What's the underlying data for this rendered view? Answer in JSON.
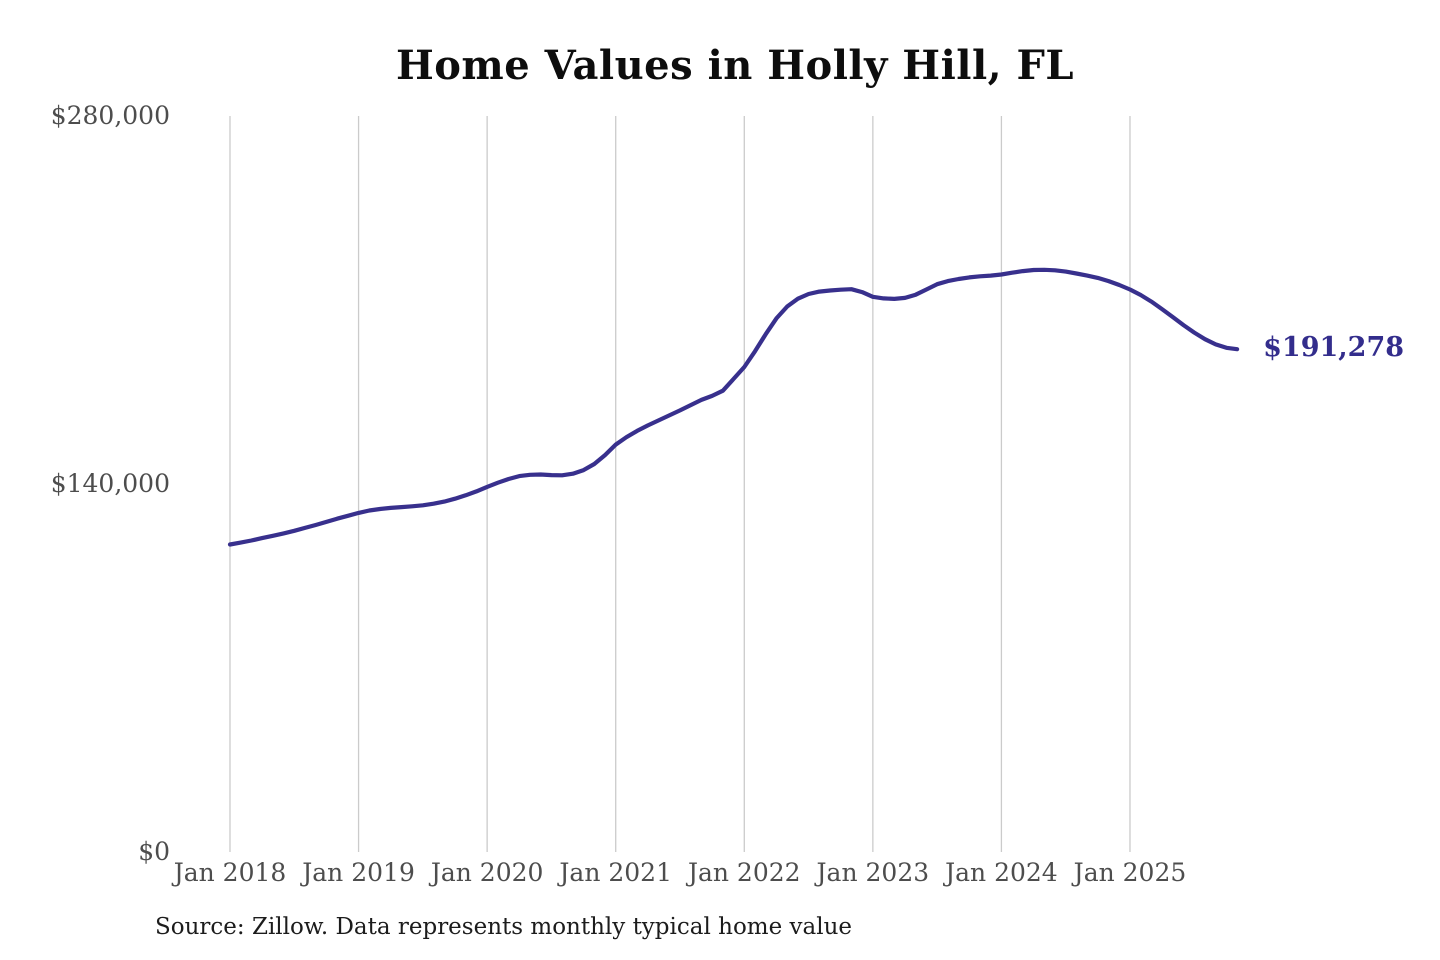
{
  "page": {
    "title": "Home Values in Holly Hill, FL",
    "source_note": "Source: Zillow. Data represents monthly typical home value"
  },
  "colors": {
    "line": "#38308d",
    "grid": "#cbcbcb",
    "axis_label": "#4d4d4d",
    "title": "#0d0d0d",
    "annotation": "#332d8c",
    "background": "#ffffff"
  },
  "chart_data": {
    "type": "line",
    "title": "Home Values in Holly Hill, FL",
    "x_start": "Jan 2018",
    "x_end": "Nov 2025",
    "frequency": "monthly",
    "grid": "vertical",
    "legend": "none",
    "ylim": [
      0,
      280000
    ],
    "y_ticks": [
      {
        "value": 0,
        "label": "$0"
      },
      {
        "value": 140000,
        "label": "$140,000"
      },
      {
        "value": 280000,
        "label": "$280,000"
      }
    ],
    "x_tick_labels": [
      "Jan 2018",
      "Jan 2019",
      "Jan 2020",
      "Jan 2021",
      "Jan 2022",
      "Jan 2023",
      "Jan 2024",
      "Jan 2025"
    ],
    "months_per_x_tick": 12,
    "end_annotation": "$191,278",
    "final_value": 191278,
    "series": [
      {
        "name": "Typical home value",
        "values": [
          117000,
          117700,
          118500,
          119400,
          120300,
          121200,
          122200,
          123300,
          124400,
          125600,
          126800,
          127900,
          129000,
          129900,
          130500,
          130900,
          131200,
          131500,
          131900,
          132500,
          133300,
          134400,
          135700,
          137200,
          138900,
          140500,
          141900,
          143000,
          143500,
          143600,
          143400,
          143300,
          143900,
          145300,
          147600,
          151000,
          155000,
          157800,
          160200,
          162300,
          164200,
          166100,
          168000,
          170000,
          172000,
          173500,
          175500,
          180000,
          184500,
          190500,
          197000,
          203000,
          207500,
          210500,
          212300,
          213200,
          213600,
          213900,
          214100,
          213000,
          211200,
          210600,
          210400,
          210800,
          212000,
          214000,
          216000,
          217200,
          218000,
          218600,
          219000,
          219300,
          219700,
          220400,
          221000,
          221400,
          221500,
          221300,
          220800,
          220100,
          219300,
          218400,
          217200,
          215700,
          214000,
          211900,
          209400,
          206500,
          203500,
          200400,
          197600,
          195100,
          193100,
          191800,
          191278
        ]
      }
    ]
  }
}
